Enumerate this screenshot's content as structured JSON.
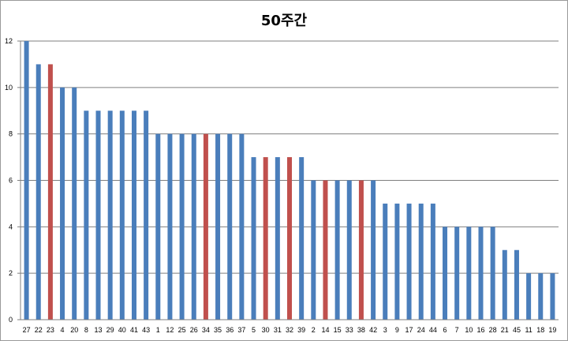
{
  "chart_data": {
    "type": "bar",
    "title": "50주간",
    "xlabel": "",
    "ylabel": "",
    "ylim": [
      0,
      12
    ],
    "yticks": [
      0,
      2,
      4,
      6,
      8,
      10,
      12
    ],
    "grid": true,
    "legend": "none",
    "colors": {
      "default": "#4a7ebb",
      "highlight": "#c0504d",
      "grid": "#7f7f7f",
      "axis": "#7f7f7f"
    },
    "categories": [
      "27",
      "22",
      "23",
      "4",
      "20",
      "8",
      "13",
      "29",
      "40",
      "41",
      "43",
      "1",
      "12",
      "25",
      "26",
      "34",
      "35",
      "36",
      "37",
      "5",
      "30",
      "31",
      "32",
      "39",
      "2",
      "14",
      "15",
      "33",
      "38",
      "42",
      "3",
      "9",
      "17",
      "24",
      "44",
      "6",
      "7",
      "10",
      "16",
      "28",
      "21",
      "45",
      "11",
      "18",
      "19"
    ],
    "values": [
      12,
      11,
      11,
      10,
      10,
      9,
      9,
      9,
      9,
      9,
      9,
      8,
      8,
      8,
      8,
      8,
      8,
      8,
      8,
      7,
      7,
      7,
      7,
      7,
      6,
      6,
      6,
      6,
      6,
      6,
      5,
      5,
      5,
      5,
      5,
      4,
      4,
      4,
      4,
      4,
      3,
      3,
      2,
      2,
      2
    ],
    "highlighted": [
      "23",
      "34",
      "30",
      "32",
      "14",
      "38"
    ]
  }
}
